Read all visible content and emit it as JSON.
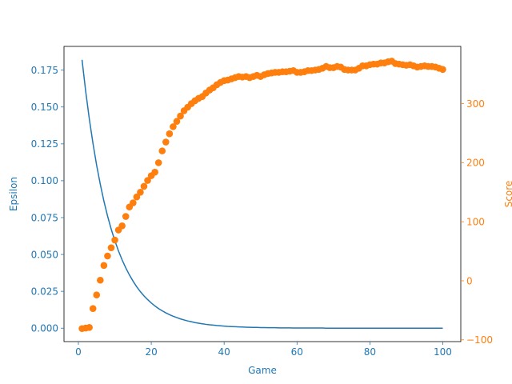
{
  "chart_data": {
    "type": "line+scatter",
    "xlabel": "Game",
    "ylabel_left": "Epsilon",
    "ylabel_right": "Score",
    "xlim": [
      -3.95,
      104.95
    ],
    "ylim_left": [
      -0.0091,
      0.1911
    ],
    "ylim_right": [
      -103,
      397
    ],
    "x_ticks": [
      0,
      20,
      40,
      60,
      80,
      100
    ],
    "x_tick_labels": [
      "0",
      "20",
      "40",
      "60",
      "80",
      "100"
    ],
    "y_left_ticks": [
      0.0,
      0.025,
      0.05,
      0.075,
      0.1,
      0.125,
      0.15,
      0.175
    ],
    "y_left_tick_labels": [
      "0.000",
      "0.025",
      "0.050",
      "0.075",
      "0.100",
      "0.125",
      "0.150",
      "0.175"
    ],
    "y_right_ticks": [
      -100,
      0,
      100,
      200,
      300
    ],
    "y_right_tick_labels": [
      "−100",
      "0",
      "100",
      "200",
      "300"
    ],
    "colors": {
      "epsilon": "#1f77b4",
      "score": "#ff7f0e",
      "axes": "#000000"
    },
    "series": [
      {
        "name": "Epsilon",
        "axis": "left",
        "style": "line",
        "x": [
          1,
          2,
          3,
          4,
          5,
          6,
          7,
          8,
          9,
          10,
          11,
          12,
          13,
          14,
          15,
          16,
          17,
          18,
          19,
          20,
          21,
          22,
          23,
          24,
          25,
          26,
          27,
          28,
          29,
          30,
          31,
          32,
          33,
          34,
          35,
          36,
          37,
          38,
          39,
          40,
          41,
          42,
          43,
          44,
          45,
          46,
          47,
          48,
          49,
          50,
          51,
          52,
          53,
          54,
          55,
          56,
          57,
          58,
          59,
          60,
          61,
          62,
          63,
          64,
          65,
          66,
          67,
          68,
          69,
          70,
          71,
          72,
          73,
          74,
          75,
          76,
          77,
          78,
          79,
          80,
          81,
          82,
          83,
          84,
          85,
          86,
          87,
          88,
          89,
          90,
          91,
          92,
          93,
          94,
          95,
          96,
          97,
          98,
          99,
          100
        ],
        "y": [
          0.182,
          0.1607,
          0.1419,
          0.1253,
          0.1106,
          0.0977,
          0.0862,
          0.0761,
          0.0672,
          0.0594,
          0.0524,
          0.0463,
          0.0409,
          0.0361,
          0.0319,
          0.0281,
          0.0248,
          0.0219,
          0.0194,
          0.0171,
          0.0151,
          0.0133,
          0.0118,
          0.0104,
          0.0092,
          0.0081,
          0.0072,
          0.0063,
          0.0056,
          0.0049,
          0.0044,
          0.0038,
          0.0034,
          0.003,
          0.0026,
          0.0023,
          0.0021,
          0.0018,
          0.0016,
          0.0014,
          0.0012,
          0.0011,
          0.001,
          0.0009,
          0.0008,
          0.0007,
          0.0006,
          0.0005,
          0.0005,
          0.0004,
          0.0004,
          0.0003,
          0.0003,
          0.0003,
          0.0002,
          0.0002,
          0.0002,
          0.0002,
          0.0001,
          0.0001,
          0.0001,
          0.0001,
          0.0001,
          0.0001,
          0.0001,
          0.0001,
          0.0001,
          0.0,
          0.0,
          0.0,
          0.0,
          0.0,
          0.0,
          0.0,
          0.0,
          0.0,
          0.0,
          0.0,
          0.0,
          0.0,
          0.0,
          0.0,
          0.0,
          0.0,
          0.0,
          0.0,
          0.0,
          0.0,
          0.0,
          0.0,
          0.0,
          0.0,
          0.0,
          0.0,
          0.0,
          0.0,
          0.0,
          0.0,
          0.0,
          0.0
        ]
      },
      {
        "name": "Score",
        "axis": "right",
        "style": "scatter",
        "x": [
          1,
          2,
          3,
          4,
          5,
          6,
          7,
          8,
          9,
          10,
          11,
          12,
          13,
          14,
          15,
          16,
          17,
          18,
          19,
          20,
          21,
          22,
          23,
          24,
          25,
          26,
          27,
          28,
          29,
          30,
          31,
          32,
          33,
          34,
          35,
          36,
          37,
          38,
          39,
          40,
          41,
          42,
          43,
          44,
          45,
          46,
          47,
          48,
          49,
          50,
          51,
          52,
          53,
          54,
          55,
          56,
          57,
          58,
          59,
          60,
          61,
          62,
          63,
          64,
          65,
          66,
          67,
          68,
          69,
          70,
          71,
          72,
          73,
          74,
          75,
          76,
          77,
          78,
          79,
          80,
          81,
          82,
          83,
          84,
          85,
          86,
          87,
          88,
          89,
          90,
          91,
          92,
          93,
          94,
          95,
          96,
          97,
          98,
          99,
          100
        ],
        "y": [
          -81,
          -80,
          -79,
          -47,
          -24,
          1,
          26,
          42,
          56,
          69,
          86,
          93,
          109,
          125,
          132,
          142,
          150,
          160,
          170,
          178,
          184,
          200,
          220,
          235,
          249,
          261,
          270,
          279,
          288,
          294,
          300,
          305,
          309,
          312,
          318,
          323,
          327,
          332,
          336,
          339,
          340,
          342,
          344,
          346,
          345,
          346,
          344,
          346,
          348,
          346,
          349,
          351,
          352,
          353,
          353,
          354,
          354,
          355,
          356,
          353,
          353,
          354,
          356,
          356,
          357,
          358,
          360,
          363,
          361,
          361,
          363,
          362,
          358,
          357,
          357,
          357,
          360,
          364,
          364,
          366,
          367,
          367,
          369,
          369,
          371,
          372,
          368,
          367,
          366,
          365,
          366,
          364,
          362,
          363,
          364,
          363,
          363,
          362,
          360,
          358
        ]
      }
    ]
  }
}
